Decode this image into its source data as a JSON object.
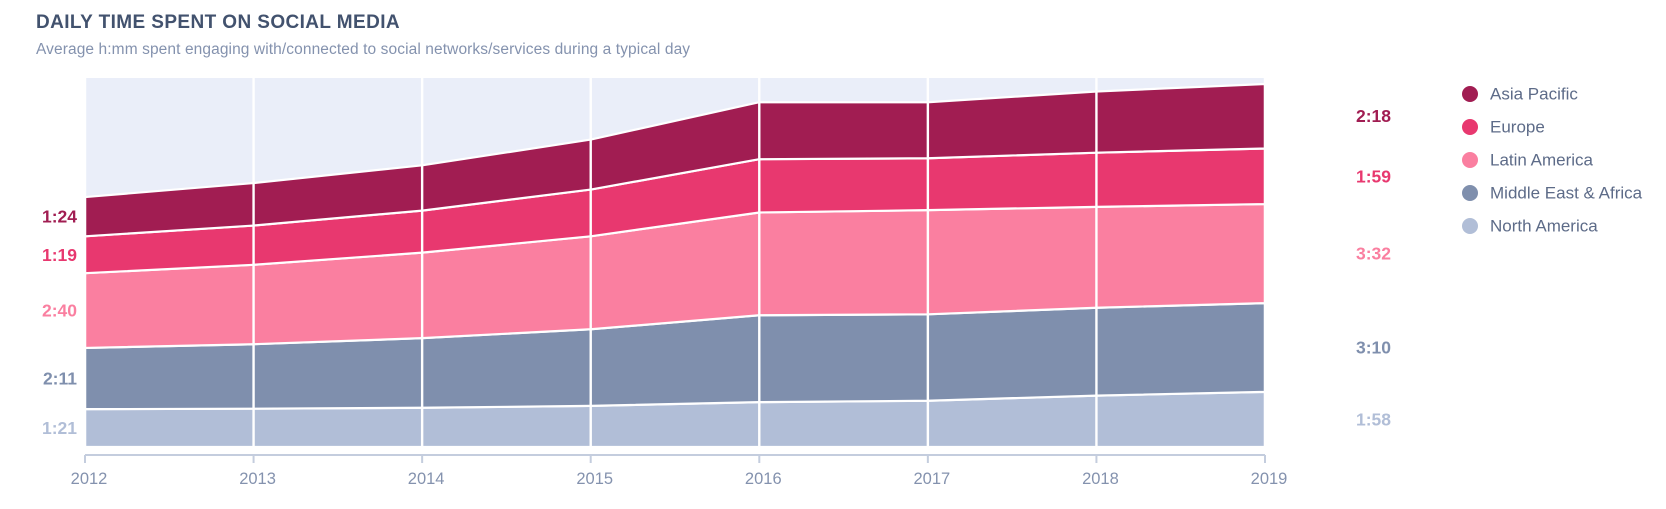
{
  "header": {
    "title": "DAILY TIME SPENT ON SOCIAL MEDIA",
    "subtitle": "Average h:mm spent engaging with/connected to social networks/services during a typical day"
  },
  "colors": {
    "plot_background": "#eaeef9",
    "gridline": "#ffffff",
    "axis_line": "#c4cdde",
    "axis_label": "#8492ae",
    "title": "#42526e",
    "subtitle": "#8492ae",
    "legend_text": "#5d6b88"
  },
  "chart_data": {
    "type": "area",
    "stacked": true,
    "title": "DAILY TIME SPENT ON SOCIAL MEDIA",
    "subtitle": "Average h:mm spent engaging with/connected to social networks/services during a typical day",
    "x": [
      2012,
      2013,
      2014,
      2015,
      2016,
      2017,
      2018,
      2019
    ],
    "x_tick_labels": [
      "2012",
      "2013",
      "2014",
      "2015",
      "2016",
      "2017",
      "2018",
      "2019"
    ],
    "unit": "minutes per day (shown as h:mm)",
    "ylim": [
      0,
      800
    ],
    "grid": "vertical-white-lines",
    "legend_position": "right",
    "series": [
      {
        "name": "Asia Pacific",
        "color": "#a11d52",
        "start_label": "1:24",
        "end_label": "2:18",
        "values_min": [
          84,
          91,
          97,
          107,
          122,
          120,
          131,
          138
        ]
      },
      {
        "name": "Europe",
        "color": "#e8386f",
        "start_label": "1:19",
        "end_label": "1:59",
        "values_min": [
          79,
          84,
          90,
          100,
          114,
          111,
          116,
          119
        ]
      },
      {
        "name": "Latin America",
        "color": "#fa7fa0",
        "start_label": "2:40",
        "end_label": "3:32",
        "values_min": [
          160,
          170,
          183,
          199,
          220,
          223,
          216,
          212
        ]
      },
      {
        "name": "Middle East & Africa",
        "color": "#7f8fad",
        "start_label": "2:11",
        "end_label": "3:10",
        "values_min": [
          131,
          138,
          149,
          164,
          186,
          185,
          188,
          190
        ]
      },
      {
        "name": "North America",
        "color": "#b1bed7",
        "start_label": "1:21",
        "end_label": "1:58",
        "values_min": [
          81,
          82,
          84,
          88,
          96,
          99,
          110,
          118
        ]
      }
    ]
  }
}
